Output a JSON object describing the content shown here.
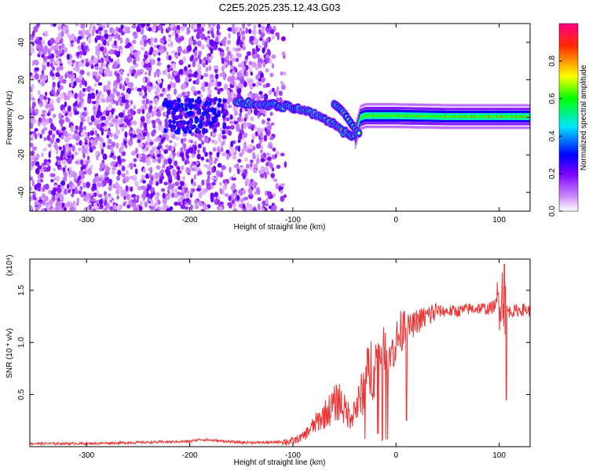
{
  "title": "C2E5.2025.235.12.43.G03",
  "chart_data": [
    {
      "type": "heatmap",
      "xlabel": "Height of straight line (km)",
      "ylabel": "Frequency (Hz)",
      "xlim": [
        -355,
        130
      ],
      "ylim": [
        -50,
        50
      ],
      "xticks": [
        -300,
        -200,
        -100,
        0,
        100
      ],
      "yticks": [
        -40,
        -20,
        0,
        20,
        40
      ],
      "colorbar": {
        "label": "Normalized spectral amplitude",
        "range": [
          0,
          1
        ],
        "ticks": [
          "0.0",
          "0.2",
          "0.4",
          "0.6",
          "0.8"
        ],
        "colors": [
          "#ffffff",
          "#8800ff",
          "#0000ff",
          "#00ffff",
          "#00ff00",
          "#ffff00",
          "#ff0000",
          "#ff0088"
        ]
      },
      "trace": {
        "x": [
          -150,
          -120,
          -100,
          -80,
          -70,
          -60,
          -50,
          -40,
          -35,
          -30,
          -20,
          0,
          50,
          100,
          130
        ],
        "y": [
          8,
          7,
          5,
          2,
          -1,
          -4,
          -8,
          -10,
          0,
          1,
          1,
          1,
          0.5,
          0.5,
          0.5
        ]
      },
      "branch": {
        "x": [
          -60,
          -55,
          -50,
          -45,
          -40,
          -35
        ],
        "y": [
          7,
          5,
          2,
          -2,
          -6,
          -9
        ]
      },
      "noise_extent": [
        -355,
        -105
      ],
      "band_extent": [
        -40,
        130
      ]
    },
    {
      "type": "line",
      "xlabel": "Height of straight line (km)",
      "ylabel": "SNR (10 * v/v)",
      "scale_label": "(x10⁴)",
      "xlim": [
        -355,
        130
      ],
      "ylim": [
        0,
        1.8
      ],
      "xticks": [
        -300,
        -200,
        -100,
        0,
        100
      ],
      "yticks": [
        0.5,
        1.0,
        1.5
      ],
      "ytick_labels": [
        "0.5",
        "1.0",
        "1.5"
      ],
      "line_color": "#ee3333",
      "series": [
        {
          "x": [
            -355,
            -300,
            -250,
            -200,
            -190,
            -150,
            -120,
            -110,
            -100,
            -90,
            -80,
            -70,
            -60,
            -55,
            -50,
            -45,
            -40,
            -35,
            -30,
            -25,
            -20,
            -15,
            -10,
            -5,
            0,
            5,
            10,
            15,
            20,
            30,
            40,
            50,
            60,
            70,
            80,
            90,
            95,
            100,
            103,
            105,
            108,
            115,
            125,
            130
          ],
          "y": [
            0.03,
            0.03,
            0.04,
            0.05,
            0.07,
            0.04,
            0.04,
            0.05,
            0.05,
            0.1,
            0.2,
            0.3,
            0.4,
            0.45,
            0.35,
            0.3,
            0.35,
            0.45,
            0.6,
            0.75,
            0.85,
            0.9,
            0.95,
            0.9,
            1.0,
            1.1,
            1.15,
            1.15,
            1.2,
            1.25,
            1.3,
            1.3,
            1.3,
            1.32,
            1.33,
            1.32,
            1.35,
            1.4,
            1.5,
            1.3,
            1.3,
            1.3,
            1.32,
            1.3
          ]
        }
      ]
    }
  ]
}
